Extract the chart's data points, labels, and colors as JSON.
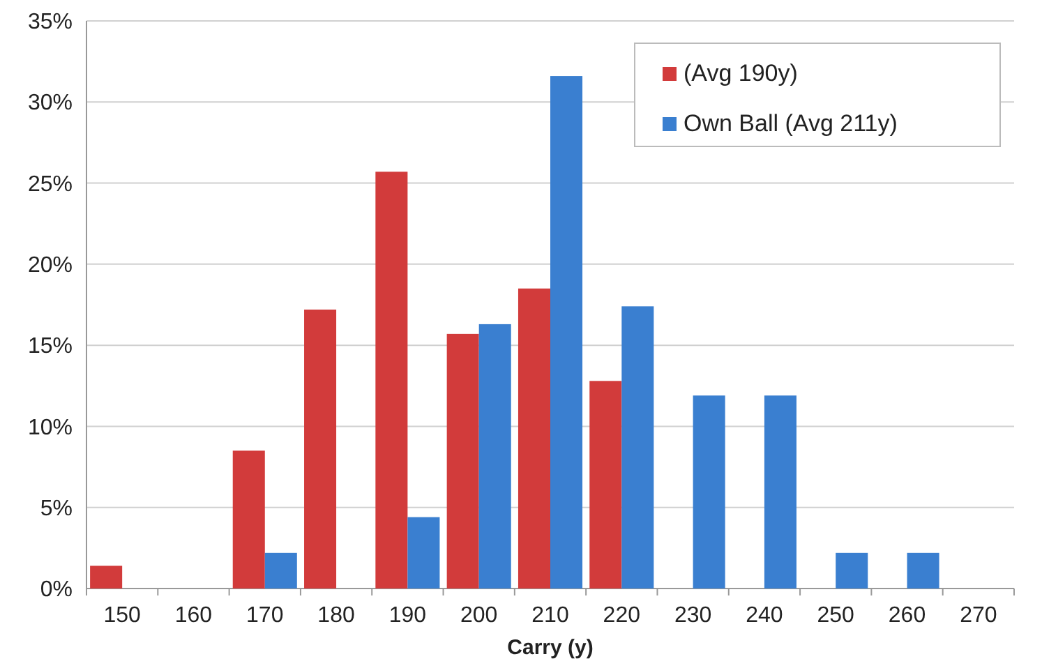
{
  "chart_data": {
    "type": "bar",
    "xlabel": "Carry (y)",
    "categories": [
      "150",
      "160",
      "170",
      "180",
      "190",
      "200",
      "210",
      "220",
      "230",
      "240",
      "250",
      "260",
      "270"
    ],
    "series": [
      {
        "name": "(Avg 190y)",
        "color": "#d23b3b",
        "values": [
          1.4,
          null,
          8.5,
          17.2,
          25.7,
          15.7,
          18.5,
          12.8,
          null,
          null,
          null,
          null,
          null
        ]
      },
      {
        "name": "Own Ball (Avg 211y)",
        "color": "#3a7fd0",
        "values": [
          null,
          null,
          2.2,
          null,
          4.4,
          16.3,
          31.6,
          17.4,
          11.9,
          11.9,
          2.2,
          2.2,
          null
        ]
      }
    ],
    "ylim": [
      0,
      35
    ],
    "yticks": [
      {
        "value": 0,
        "label": "0%"
      },
      {
        "value": 5,
        "label": "5%"
      },
      {
        "value": 10,
        "label": "10%"
      },
      {
        "value": 15,
        "label": "15%"
      },
      {
        "value": 20,
        "label": "20%"
      },
      {
        "value": 25,
        "label": "25%"
      },
      {
        "value": 30,
        "label": "30%"
      },
      {
        "value": 35,
        "label": "35%"
      }
    ],
    "grid": "y",
    "legend": "top right"
  }
}
